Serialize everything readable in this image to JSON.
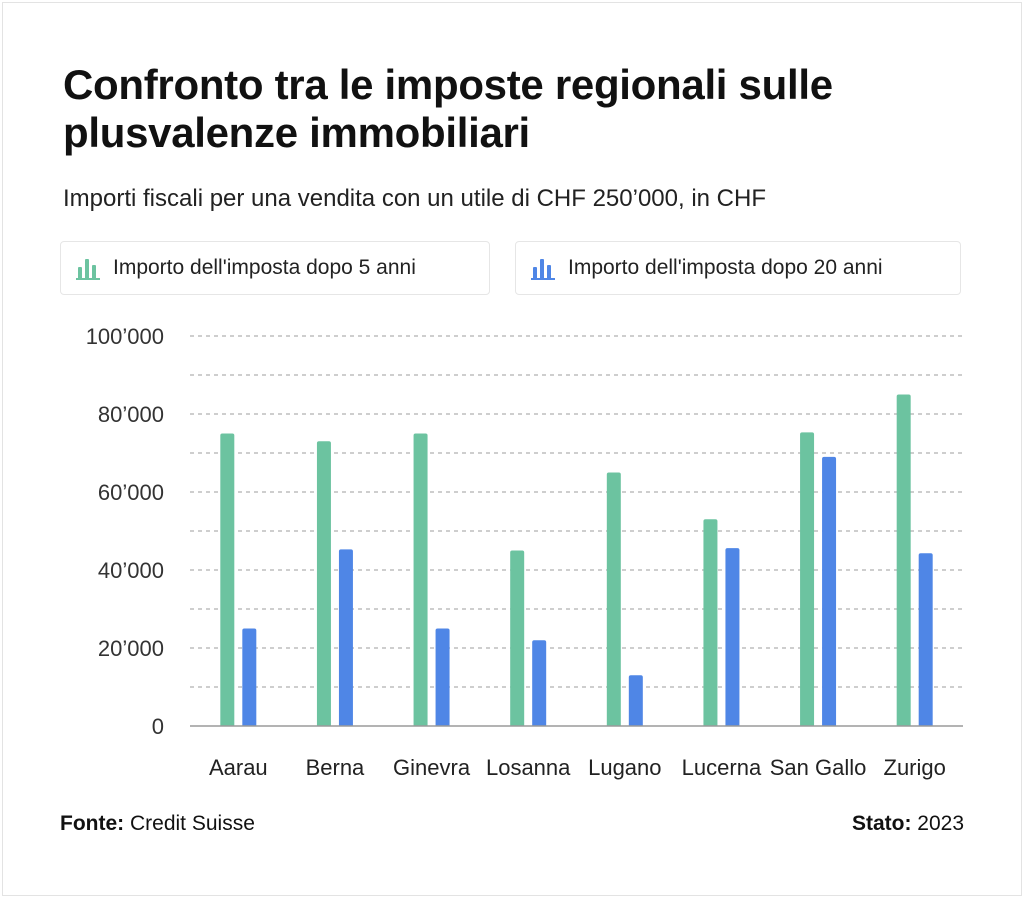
{
  "chart_data": {
    "type": "bar",
    "title": "Confronto tra le imposte regionali sulle plusvalenze immobiliari",
    "subtitle": "Importi fiscali per una vendita con un utile di CHF 250’000, in CHF",
    "categories": [
      "Aarau",
      "Berna",
      "Ginevra",
      "Losanna",
      "Lugano",
      "Lucerna",
      "San Gallo",
      "Zurigo"
    ],
    "series": [
      {
        "name": "Importo dell'imposta dopo 5 anni",
        "color": "#6cc3a0",
        "values": [
          75000,
          73000,
          75000,
          45000,
          65000,
          53000,
          75300,
          85000
        ]
      },
      {
        "name": "Importo dell'imposta dopo 20 anni",
        "color": "#4f86e6",
        "values": [
          25000,
          45300,
          25000,
          22000,
          13000,
          45600,
          69000,
          44300
        ]
      }
    ],
    "yticks": [
      0,
      20000,
      40000,
      60000,
      80000,
      100000
    ],
    "ytick_labels": [
      "0",
      "20’000",
      "40’000",
      "60’000",
      "80’000",
      "100’000"
    ],
    "ylim": [
      0,
      100000
    ],
    "grid": true,
    "legend_position": "top"
  },
  "footer": {
    "source_label": "Fonte:",
    "source_value": "Credit Suisse",
    "status_label": "Stato:",
    "status_value": "2023"
  }
}
